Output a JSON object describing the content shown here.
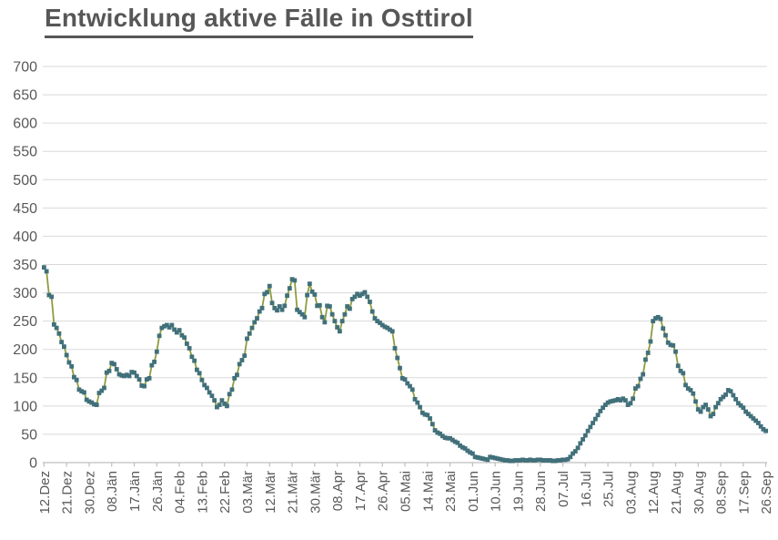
{
  "title": "Entwicklung aktive Fälle in Osttirol",
  "colors": {
    "line": "#8E9C3E",
    "marker": "#41707A",
    "gridline": "#D9D9D9",
    "axis_line": "#BFBFBF",
    "label_text": "#595959",
    "title_text": "#575757",
    "background": "#FFFFFF"
  },
  "chart_data": {
    "type": "line",
    "title": "Entwicklung aktive Fälle in Osttirol",
    "marker": "square",
    "grid": "horizontal",
    "legend": "none",
    "ylim": [
      0,
      700
    ],
    "y_ticks": [
      0,
      50,
      100,
      150,
      200,
      250,
      300,
      350,
      400,
      450,
      500,
      550,
      600,
      650,
      700
    ],
    "x_tick_interval_points": 9,
    "x_tick_labels": [
      "12.Dez",
      "21.Dez",
      "30.Dez",
      "08.Jän",
      "17.Jän",
      "26.Jän",
      "04.Feb",
      "13.Feb",
      "22.Feb",
      "03.Mär",
      "12.Mär",
      "21.Mär",
      "30.Mär",
      "08.Apr",
      "17.Apr",
      "26.Apr",
      "05.Mai",
      "14.Mai",
      "23.Mai",
      "01.Jun",
      "10.Jun",
      "19.Jun",
      "28.Jun",
      "07.Jul",
      "16.Jul",
      "25.Jul",
      "03.Aug",
      "12.Aug",
      "21.Aug",
      "30.Aug",
      "08.Sep",
      "17.Sep",
      "26.Sep"
    ],
    "series": [
      {
        "values": [
          345,
          338,
          296,
          293,
          244,
          238,
          228,
          213,
          205,
          190,
          177,
          170,
          151,
          146,
          129,
          126,
          124,
          111,
          108,
          106,
          103,
          102,
          123,
          127,
          132,
          159,
          162,
          176,
          174,
          165,
          156,
          154,
          153,
          155,
          153,
          160,
          159,
          153,
          147,
          136,
          135,
          147,
          149,
          172,
          178,
          196,
          224,
          238,
          241,
          243,
          239,
          243,
          235,
          230,
          234,
          225,
          221,
          210,
          202,
          187,
          180,
          164,
          158,
          146,
          137,
          132,
          124,
          118,
          110,
          98,
          102,
          110,
          104,
          100,
          121,
          129,
          149,
          155,
          174,
          181,
          189,
          219,
          228,
          238,
          248,
          255,
          267,
          273,
          298,
          301,
          312,
          282,
          273,
          269,
          276,
          270,
          277,
          295,
          308,
          324,
          322,
          270,
          266,
          262,
          257,
          296,
          316,
          302,
          297,
          277,
          278,
          257,
          248,
          277,
          276,
          262,
          250,
          239,
          232,
          250,
          262,
          276,
          272,
          289,
          293,
          298,
          295,
          298,
          301,
          293,
          284,
          267,
          255,
          250,
          247,
          243,
          240,
          238,
          235,
          232,
          202,
          185,
          167,
          149,
          147,
          140,
          135,
          129,
          112,
          106,
          98,
          88,
          85,
          84,
          78,
          68,
          57,
          53,
          51,
          47,
          44,
          43,
          43,
          40,
          37,
          35,
          30,
          27,
          25,
          21,
          18,
          16,
          10,
          9,
          8,
          7,
          6,
          5,
          10,
          9,
          8,
          7,
          6,
          5,
          4,
          4,
          3,
          3,
          4,
          4,
          4,
          5,
          4,
          4,
          5,
          4,
          4,
          5,
          5,
          4,
          4,
          4,
          4,
          3,
          3,
          4,
          4,
          5,
          5,
          6,
          10,
          16,
          20,
          26,
          34,
          41,
          48,
          56,
          63,
          70,
          77,
          84,
          91,
          97,
          102,
          106,
          108,
          109,
          110,
          112,
          110,
          113,
          110,
          102,
          105,
          113,
          131,
          135,
          148,
          156,
          182,
          194,
          214,
          250,
          255,
          257,
          254,
          237,
          225,
          212,
          208,
          207,
          196,
          171,
          162,
          158,
          137,
          131,
          128,
          122,
          108,
          94,
          90,
          98,
          102,
          94,
          82,
          86,
          98,
          105,
          112,
          116,
          120,
          128,
          126,
          119,
          112,
          105,
          101,
          97,
          90,
          86,
          82,
          78,
          74,
          70,
          64,
          59,
          56
        ]
      }
    ]
  }
}
